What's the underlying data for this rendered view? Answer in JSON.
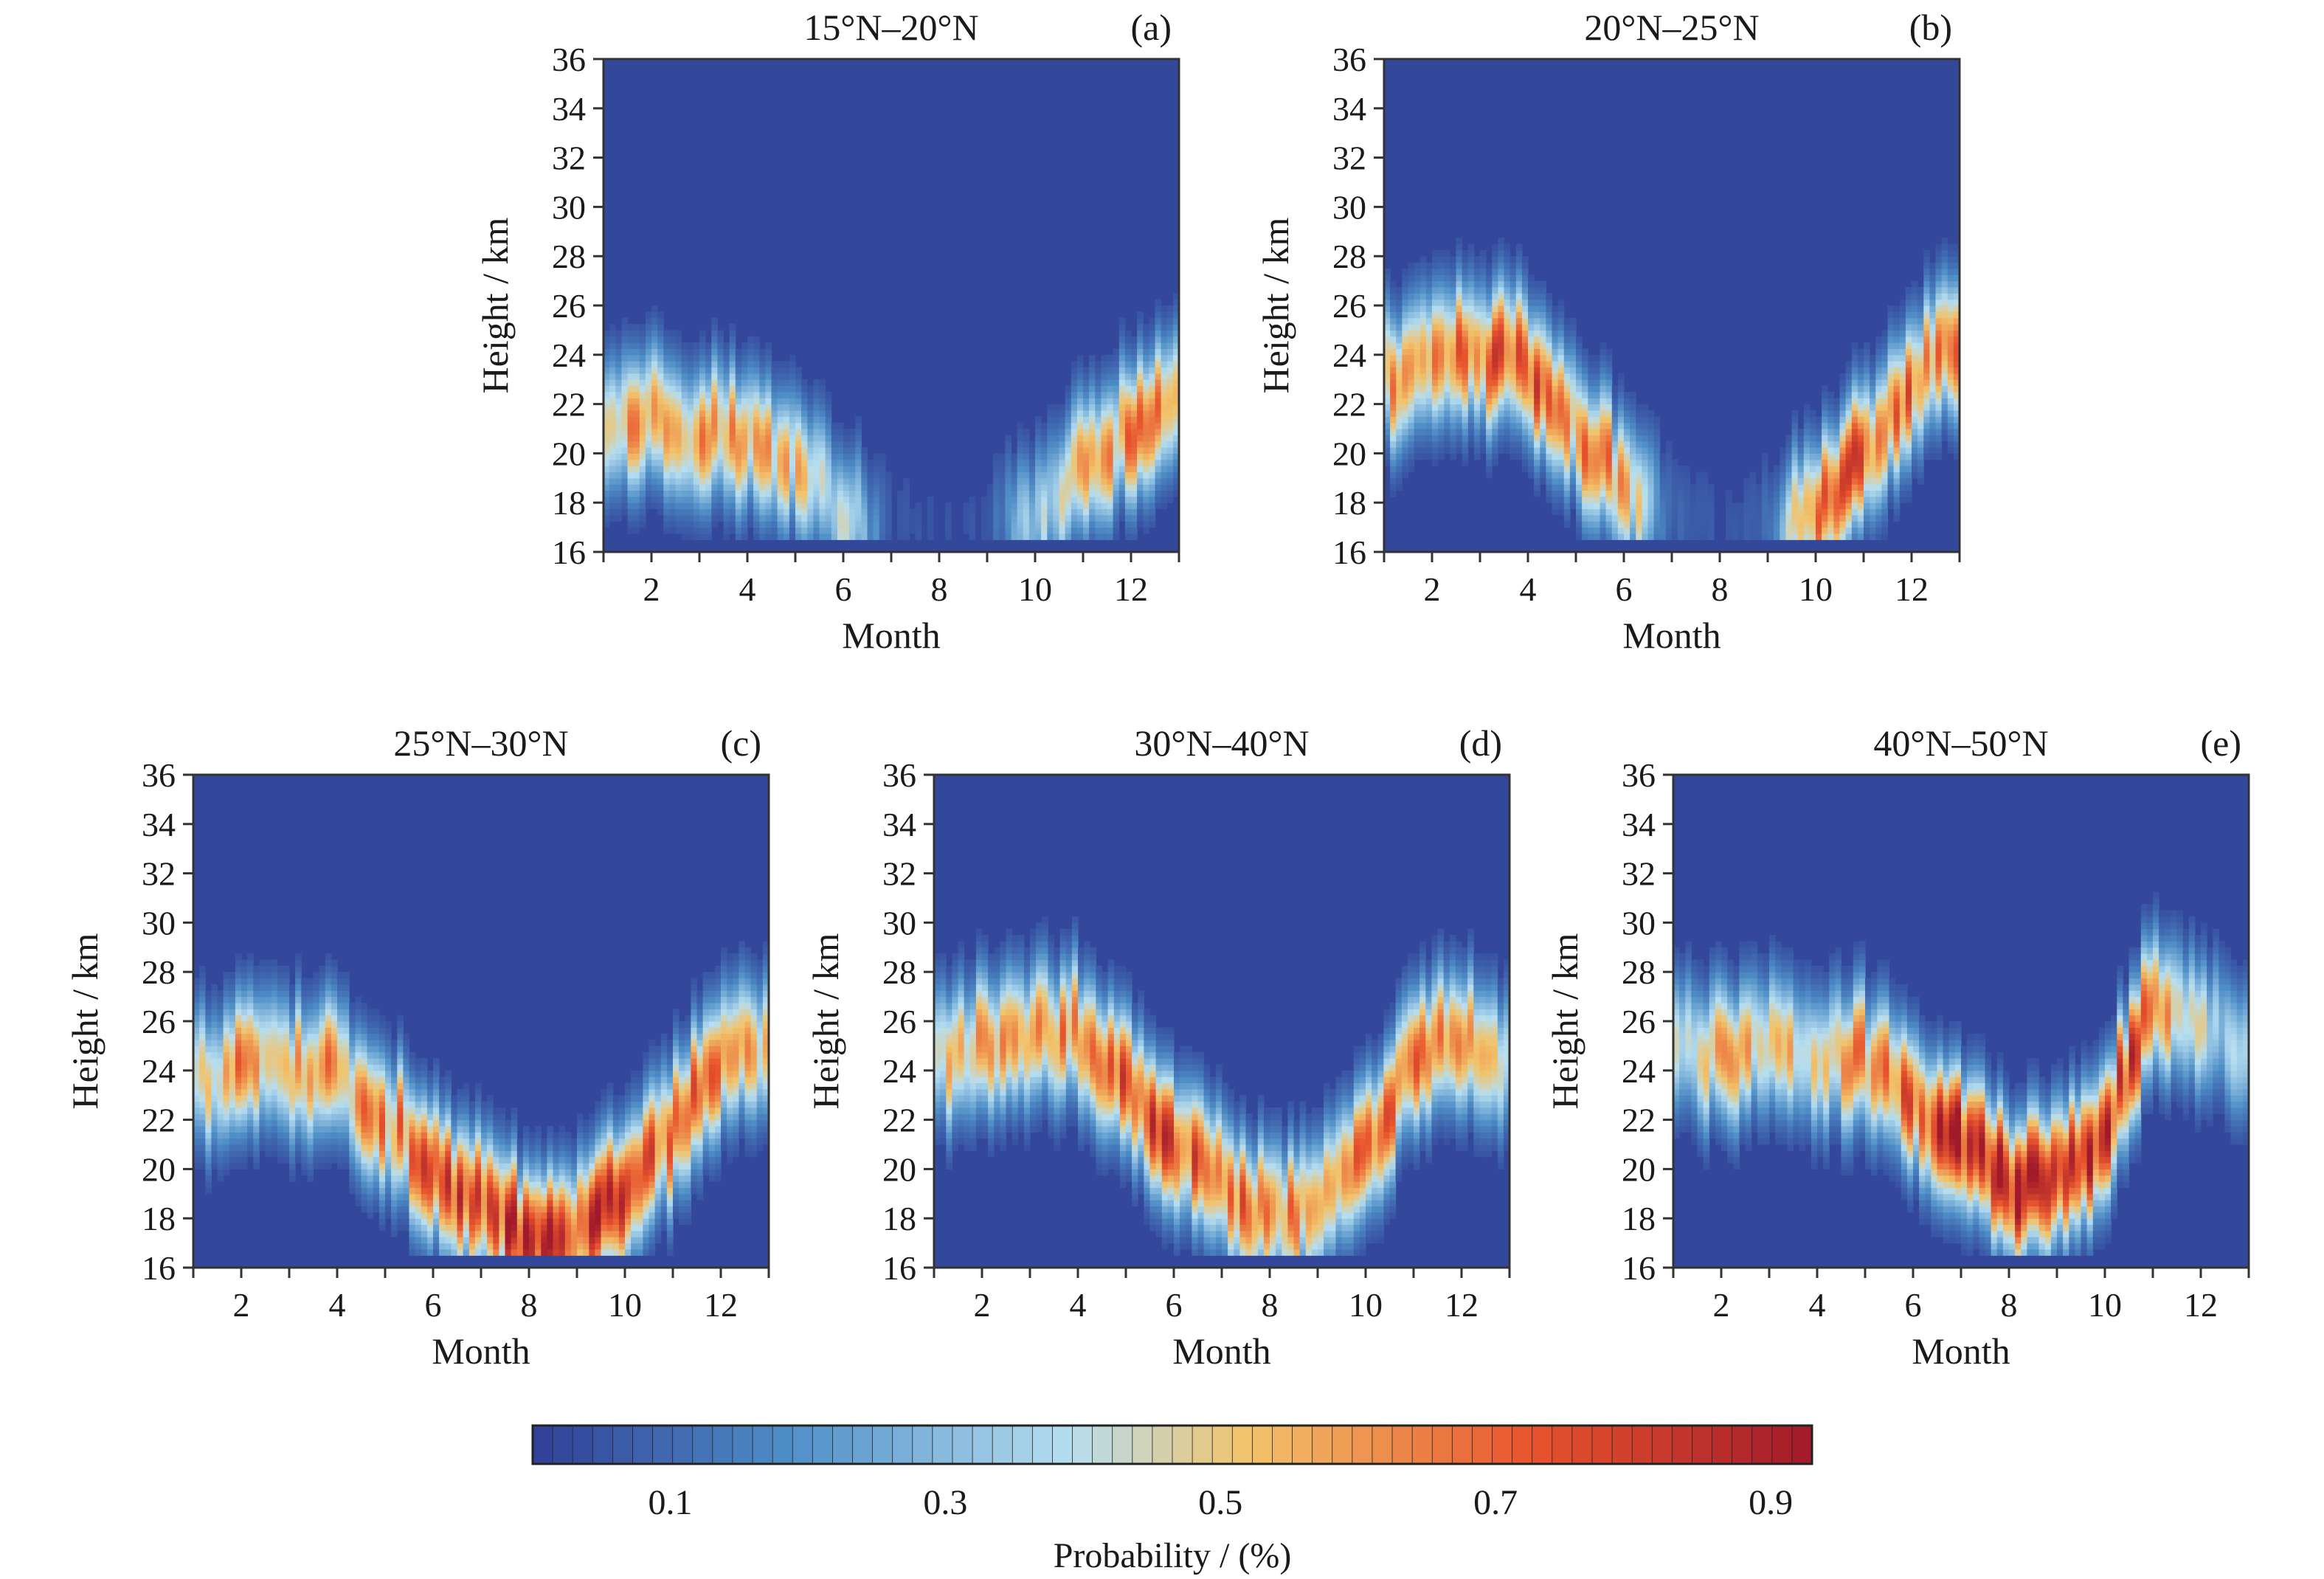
{
  "chart_data": {
    "type": "heatmap",
    "colors": {
      "low": "#303f96",
      "mid_low": "#4f8ec7",
      "mid": "#b6def0",
      "mid_high": "#f2c36a",
      "high": "#e8542d",
      "max": "#a11a2b"
    },
    "colorbar": {
      "title": "Probability / (%)",
      "ticks": [
        "0.1",
        "0.3",
        "0.5",
        "0.7",
        "0.9"
      ],
      "tick_values": [
        0.1,
        0.3,
        0.5,
        0.7,
        0.9
      ],
      "range": [
        0.0,
        0.93
      ]
    },
    "panels": [
      {
        "id": "a",
        "title": "15°N–20°N",
        "letter": "(a)",
        "xlabel": "Month",
        "ylabel": "Height / km",
        "xlim": [
          1,
          13
        ],
        "ylim": [
          16,
          36
        ],
        "xticks": [
          "2",
          "4",
          "6",
          "8",
          "10",
          "12"
        ],
        "yticks": [
          "16",
          "18",
          "20",
          "22",
          "24",
          "26",
          "28",
          "30",
          "32",
          "34",
          "36"
        ],
        "peak_height_km": [
          21.5,
          21.5,
          21.0,
          20.5,
          20.0,
          17.5,
          17.0,
          17.0,
          17.0,
          17.5,
          19.5,
          21.0,
          22.0
        ],
        "peak_probability": [
          0.55,
          0.6,
          0.6,
          0.55,
          0.5,
          0.4,
          0.05,
          0.05,
          0.05,
          0.35,
          0.5,
          0.6,
          0.6
        ]
      },
      {
        "id": "b",
        "title": "20°N–25°N",
        "letter": "(b)",
        "xlabel": "Month",
        "ylabel": "Height / km",
        "xlim": [
          1,
          13
        ],
        "ylim": [
          16,
          36
        ],
        "xticks": [
          "2",
          "4",
          "6",
          "8",
          "10",
          "12"
        ],
        "yticks": [
          "16",
          "18",
          "20",
          "22",
          "24",
          "26",
          "28",
          "30",
          "32",
          "34",
          "36"
        ],
        "peak_height_km": [
          23.0,
          23.5,
          24.0,
          23.5,
          21.0,
          18.5,
          17.5,
          17.0,
          17.0,
          17.5,
          20.0,
          23.0,
          24.5
        ],
        "peak_probability": [
          0.55,
          0.65,
          0.7,
          0.7,
          0.6,
          0.6,
          0.1,
          0.05,
          0.1,
          0.75,
          0.7,
          0.65,
          0.6
        ]
      },
      {
        "id": "c",
        "title": "25°N–30°N",
        "letter": "(c)",
        "xlabel": "Month",
        "ylabel": "Height / km",
        "xlim": [
          1,
          13
        ],
        "ylim": [
          16,
          36
        ],
        "xticks": [
          "2",
          "4",
          "6",
          "8",
          "10",
          "12"
        ],
        "yticks": [
          "16",
          "18",
          "20",
          "22",
          "24",
          "26",
          "28",
          "30",
          "32",
          "34",
          "36"
        ],
        "peak_height_km": [
          23.5,
          24.0,
          24.0,
          24.0,
          22.0,
          20.0,
          18.5,
          17.0,
          17.5,
          19.0,
          21.5,
          24.5,
          25.0
        ],
        "peak_probability": [
          0.45,
          0.6,
          0.6,
          0.6,
          0.6,
          0.7,
          0.75,
          0.8,
          0.8,
          0.75,
          0.7,
          0.6,
          0.55
        ]
      },
      {
        "id": "d",
        "title": "30°N–40°N",
        "letter": "(d)",
        "xlabel": "Month",
        "ylabel": "Height / km",
        "xlim": [
          1,
          13
        ],
        "ylim": [
          16,
          36
        ],
        "xticks": [
          "2",
          "4",
          "6",
          "8",
          "10",
          "12"
        ],
        "yticks": [
          "16",
          "18",
          "20",
          "22",
          "24",
          "26",
          "28",
          "30",
          "32",
          "34",
          "36"
        ],
        "peak_height_km": [
          24.5,
          25.0,
          25.5,
          25.5,
          23.5,
          21.0,
          19.5,
          18.0,
          18.5,
          20.5,
          24.5,
          25.5,
          24.0
        ],
        "peak_probability": [
          0.45,
          0.55,
          0.6,
          0.65,
          0.7,
          0.75,
          0.7,
          0.65,
          0.65,
          0.65,
          0.65,
          0.55,
          0.45
        ]
      },
      {
        "id": "e",
        "title": "40°N–50°N",
        "letter": "(e)",
        "xlabel": "Month",
        "ylabel": "Height / km",
        "xlim": [
          1,
          13
        ],
        "ylim": [
          16,
          36
        ],
        "xticks": [
          "2",
          "4",
          "6",
          "8",
          "10",
          "12"
        ],
        "yticks": [
          "16",
          "18",
          "20",
          "22",
          "24",
          "26",
          "28",
          "30",
          "32",
          "34",
          "36"
        ],
        "peak_height_km": [
          25.0,
          24.5,
          25.0,
          24.5,
          24.5,
          23.0,
          21.0,
          19.5,
          19.5,
          21.5,
          27.0,
          26.0,
          25.0
        ],
        "peak_probability": [
          0.45,
          0.55,
          0.5,
          0.5,
          0.6,
          0.7,
          0.85,
          0.9,
          0.88,
          0.8,
          0.75,
          0.4,
          0.3
        ]
      }
    ]
  }
}
